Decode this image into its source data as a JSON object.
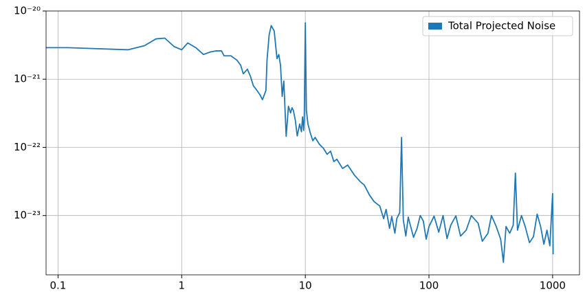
{
  "chart_data": {
    "type": "line",
    "x": [
      0.08,
      0.12,
      0.37,
      0.5,
      0.62,
      0.73,
      0.87,
      1.0,
      1.12,
      1.3,
      1.5,
      1.7,
      1.9,
      2.1,
      2.2,
      2.5,
      2.8,
      3.0,
      3.15,
      3.4,
      3.6,
      3.8,
      4.0,
      4.3,
      4.5,
      4.8,
      4.9,
      5.1,
      5.3,
      5.6,
      5.9,
      6.1,
      6.3,
      6.5,
      6.7,
      7.0,
      7.3,
      7.6,
      7.8,
      8.0,
      8.3,
      8.6,
      9.0,
      9.3,
      9.5,
      9.7,
      9.8,
      10,
      10.2,
      10.5,
      11,
      11.5,
      12,
      13,
      14,
      15,
      16,
      17,
      18,
      20,
      22,
      25,
      28,
      30,
      33,
      36,
      40,
      43,
      45,
      48,
      50,
      53,
      55,
      58,
      60,
      62,
      65,
      68,
      70,
      75,
      80,
      85,
      90,
      95,
      100,
      110,
      120,
      130,
      140,
      150,
      165,
      180,
      200,
      220,
      250,
      270,
      300,
      320,
      350,
      380,
      400,
      420,
      450,
      480,
      500,
      520,
      560,
      600,
      650,
      700,
      750,
      800,
      850,
      900,
      950,
      980,
      1000,
      1010
    ],
    "series": [
      {
        "name": "Total Projected Noise",
        "color": "#1f77b4",
        "values": [
          2.9e-21,
          2.9e-21,
          2.7e-21,
          3.1e-21,
          3.9e-21,
          4e-21,
          3e-21,
          2.7e-21,
          3.4e-21,
          2.9e-21,
          2.3e-21,
          2.5e-21,
          2.6e-21,
          2.6e-21,
          2.2e-21,
          2.2e-21,
          1.9e-21,
          1.6e-21,
          1.2e-21,
          1.4e-21,
          1.1e-21,
          8e-22,
          7.1e-22,
          5.9e-22,
          5e-22,
          6.8e-22,
          1.9e-21,
          4.5e-21,
          6.1e-21,
          5.1e-21,
          2e-21,
          2.3e-21,
          1.6e-21,
          5.6e-22,
          9.4e-22,
          1.45e-22,
          4e-22,
          3.2e-22,
          3.8e-22,
          3.5e-22,
          2.5e-22,
          1.47e-22,
          2.2e-22,
          1.69e-22,
          2.8e-22,
          1.77e-22,
          2.5e-22,
          6.7e-21,
          3.5e-22,
          2.2e-22,
          1.6e-22,
          1.25e-22,
          1.4e-22,
          1.11e-22,
          9.7e-23,
          7.9e-23,
          8.8e-23,
          6.2e-23,
          6.7e-23,
          4.9e-23,
          5.5e-23,
          3.9e-23,
          3.1e-23,
          2.8e-23,
          2e-23,
          1.6e-23,
          1.38e-23,
          9e-24,
          1.23e-23,
          6.5e-24,
          9.7e-24,
          5.5e-24,
          9.1e-24,
          1.1e-23,
          1.4e-22,
          8.7e-24,
          5e-24,
          9.5e-24,
          7.7e-24,
          4.8e-24,
          6.4e-24,
          1e-23,
          8.3e-24,
          4.5e-24,
          6.9e-24,
          9.8e-24,
          5.7e-24,
          1e-23,
          4.6e-24,
          7.2e-24,
          9.9e-24,
          5e-24,
          6.1e-24,
          1e-23,
          7.7e-24,
          4.2e-24,
          5.5e-24,
          1e-23,
          6.9e-24,
          4.5e-24,
          2.06e-24,
          6.9e-24,
          5.5e-24,
          7.2e-24,
          4.2e-23,
          6.1e-24,
          1e-23,
          6.9e-24,
          4e-24,
          4.9e-24,
          1.05e-23,
          6.9e-24,
          3.8e-24,
          6.1e-24,
          3.6e-24,
          1.05e-23,
          2.1e-23,
          2.7e-24
        ]
      }
    ],
    "xlim": [
      0.08,
      1650
    ],
    "ylim": [
      1.35e-24,
      1e-20
    ],
    "xticks": [
      0.1,
      1,
      10,
      100,
      1000
    ],
    "yticks": [
      {
        "value": 1e-23,
        "label": "10⁻²³"
      },
      {
        "value": 1e-22,
        "label": "10⁻²²"
      },
      {
        "value": 1e-21,
        "label": "10⁻²¹"
      },
      {
        "value": 1e-20,
        "label": "10⁻²⁰"
      }
    ],
    "xscale": "log",
    "yscale": "log",
    "grid": true,
    "legend": "upper right"
  }
}
